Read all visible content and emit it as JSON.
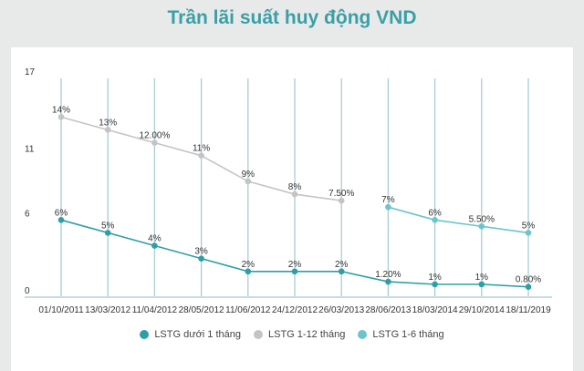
{
  "chart_data": {
    "type": "line",
    "title": "Trần lãi suất huy động VND",
    "categories": [
      "01/10/2011",
      "13/03/2012",
      "11/04/2012",
      "28/05/2012",
      "11/06/2012",
      "24/12/2012",
      "26/03/2013",
      "28/06/2013",
      "18/03/2014",
      "29/10/2014",
      "18/11/2019"
    ],
    "yticks": [
      "0",
      "6",
      "11",
      "17"
    ],
    "ylim": [
      0,
      17
    ],
    "grid": "vertical",
    "legend": "bottom",
    "series": [
      {
        "name": "LSTG dưới 1 tháng",
        "color": "#2e9fa8",
        "values": [
          6,
          5,
          4,
          3,
          2,
          2,
          2,
          1.2,
          1,
          1,
          0.8
        ],
        "labels": [
          "6%",
          "5%",
          "4%",
          "3%",
          "2%",
          "2%",
          "2%",
          "1.20%",
          "1%",
          "1%",
          "0.80%"
        ]
      },
      {
        "name": "LSTG 1-12 tháng",
        "color": "#c4c4c4",
        "values": [
          14,
          13,
          12,
          11,
          9,
          8,
          7.5,
          null,
          null,
          null,
          null
        ],
        "labels": [
          "14%",
          "13%",
          "12.00%",
          "11%",
          "9%",
          "8%",
          "7.50%",
          "",
          "",
          "",
          ""
        ]
      },
      {
        "name": "LSTG 1-6 tháng",
        "color": "#6cc4cd",
        "values": [
          null,
          null,
          null,
          null,
          null,
          null,
          null,
          7,
          6,
          5.5,
          5
        ],
        "labels": [
          "",
          "",
          "",
          "",
          "",
          "",
          "",
          "7%",
          "6%",
          "5.50%",
          "5%"
        ]
      }
    ]
  }
}
